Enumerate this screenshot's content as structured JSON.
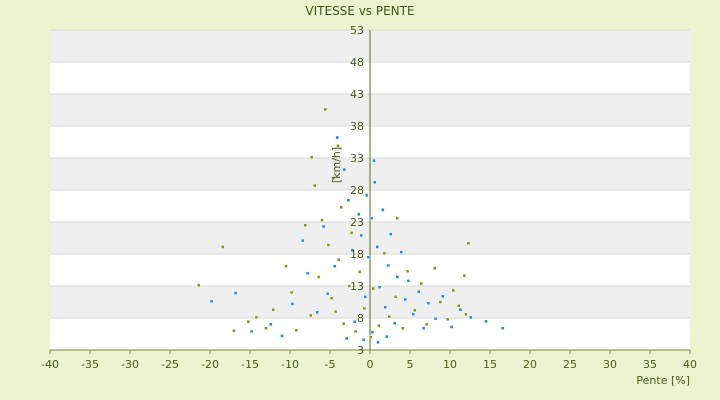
{
  "chart_data": {
    "type": "scatter",
    "title": "VITESSE vs PENTE",
    "xlabel": "Pente [%]",
    "ylabel": "[km/h]",
    "xlim": [
      -40,
      40
    ],
    "ylim": [
      3,
      53
    ],
    "x_ticks": [
      -40,
      -35,
      -30,
      -25,
      -20,
      -15,
      -10,
      -5,
      0,
      5,
      10,
      15,
      20,
      25,
      30,
      35,
      40
    ],
    "y_ticks": [
      3,
      8,
      13,
      18,
      23,
      28,
      33,
      38,
      43,
      48,
      53
    ],
    "grid": "alternating horizontal bands",
    "series": [
      {
        "color": "#2f86d6",
        "points": [
          [
            -11,
            5.2
          ],
          [
            -7.8,
            15.0
          ],
          [
            -5.3,
            11.8
          ],
          [
            -5.8,
            22.3
          ],
          [
            -4.4,
            16.1
          ],
          [
            -4.1,
            36.2
          ],
          [
            -3.2,
            31.2
          ],
          [
            -2.7,
            26.4
          ],
          [
            -2.2,
            18.6
          ],
          [
            -1.9,
            7.4
          ],
          [
            -1.4,
            24.2
          ],
          [
            -1.1,
            20.9
          ],
          [
            -0.6,
            11.3
          ],
          [
            -0.4,
            27.2
          ],
          [
            -0.2,
            17.5
          ],
          [
            0.2,
            23.6
          ],
          [
            0.3,
            5.8
          ],
          [
            0.5,
            32.6
          ],
          [
            0.9,
            19.1
          ],
          [
            1.2,
            12.8
          ],
          [
            1.6,
            24.9
          ],
          [
            1.9,
            9.7
          ],
          [
            2.3,
            16.2
          ],
          [
            2.6,
            21.1
          ],
          [
            3.1,
            7.2
          ],
          [
            3.4,
            14.4
          ],
          [
            3.9,
            18.3
          ],
          [
            4.4,
            10.9
          ],
          [
            4.8,
            13.8
          ],
          [
            5.4,
            8.6
          ],
          [
            6.1,
            12.1
          ],
          [
            6.7,
            6.4
          ],
          [
            7.3,
            10.3
          ],
          [
            8.2,
            7.9
          ],
          [
            9.1,
            11.4
          ],
          [
            10.2,
            6.6
          ],
          [
            11.3,
            9.3
          ],
          [
            12.6,
            8.1
          ],
          [
            14.5,
            7.5
          ],
          [
            16.6,
            6.4
          ],
          [
            -19.8,
            10.6
          ],
          [
            -16.8,
            11.9
          ],
          [
            -14.8,
            5.9
          ],
          [
            -12.4,
            7.0
          ],
          [
            -9.7,
            10.2
          ],
          [
            -8.4,
            20.1
          ],
          [
            -6.6,
            8.9
          ],
          [
            -0.8,
            4.6
          ],
          [
            1.0,
            4.2
          ],
          [
            2.1,
            5.1
          ],
          [
            -2.9,
            4.8
          ],
          [
            0.6,
            29.2
          ]
        ]
      },
      {
        "color": "#8e8f1c",
        "points": [
          [
            -21.4,
            13.1
          ],
          [
            -18.4,
            19.1
          ],
          [
            -15.2,
            7.4
          ],
          [
            -13.0,
            6.4
          ],
          [
            -12.1,
            9.3
          ],
          [
            -10.5,
            16.1
          ],
          [
            -9.8,
            12.0
          ],
          [
            -9.2,
            6.1
          ],
          [
            -8.1,
            22.5
          ],
          [
            -7.4,
            8.4
          ],
          [
            -6.9,
            28.7
          ],
          [
            -6.4,
            14.4
          ],
          [
            -6.0,
            23.3
          ],
          [
            -5.6,
            40.6
          ],
          [
            -5.2,
            19.4
          ],
          [
            -4.8,
            11.1
          ],
          [
            -4.6,
            29.8
          ],
          [
            -4.3,
            9.0
          ],
          [
            -3.9,
            17.1
          ],
          [
            -3.6,
            25.3
          ],
          [
            -3.3,
            7.1
          ],
          [
            -2.6,
            13.0
          ],
          [
            -2.3,
            21.3
          ],
          [
            -1.8,
            5.9
          ],
          [
            -1.3,
            15.2
          ],
          [
            -0.7,
            9.5
          ],
          [
            0.1,
            5.0
          ],
          [
            0.4,
            12.6
          ],
          [
            1.1,
            6.8
          ],
          [
            1.8,
            18.1
          ],
          [
            2.4,
            8.2
          ],
          [
            3.2,
            11.3
          ],
          [
            4.1,
            6.4
          ],
          [
            4.7,
            15.3
          ],
          [
            5.6,
            9.2
          ],
          [
            6.4,
            13.4
          ],
          [
            7.1,
            7.0
          ],
          [
            8.1,
            15.8
          ],
          [
            8.8,
            10.5
          ],
          [
            9.7,
            7.8
          ],
          [
            10.4,
            12.3
          ],
          [
            11.1,
            9.9
          ],
          [
            11.8,
            14.6
          ],
          [
            12.3,
            19.7
          ],
          [
            12.0,
            8.6
          ],
          [
            -14.2,
            8.1
          ],
          [
            -17.0,
            6.0
          ],
          [
            -4.0,
            34.9
          ],
          [
            -7.3,
            33.1
          ],
          [
            3.4,
            23.6
          ]
        ]
      }
    ]
  }
}
